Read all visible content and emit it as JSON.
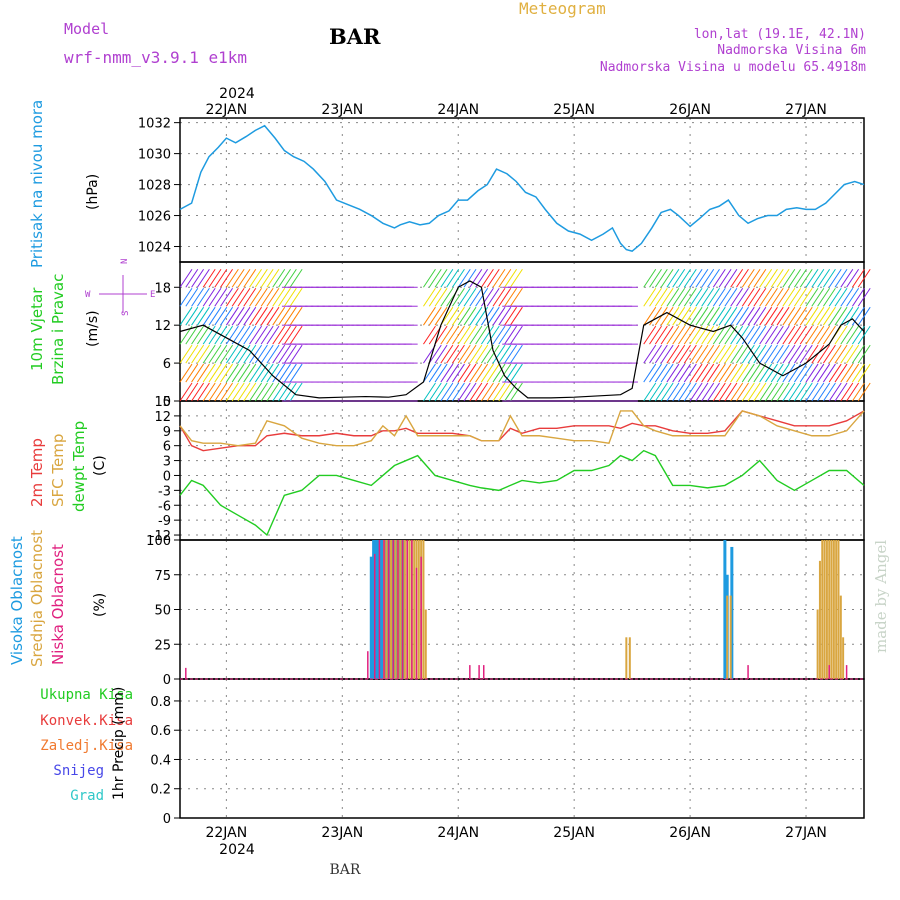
{
  "header": {
    "model_label": "Model",
    "model_name": "wrf-nmm_v3.9.1 e1km",
    "station": "BAR",
    "product": "Meteogram",
    "location": "lon,lat (19.1E, 42.1N)",
    "altitude": "Nadmorska Visina 6m",
    "model_altitude": "Nadmorska Visina u modelu 65.4918m",
    "watermark": "made by Angel",
    "footer_station": "BAR"
  },
  "colors": {
    "purple": "#b040d0",
    "gold": "#e0b040",
    "pressure": "#1e9be0",
    "temp": "#e83c3c",
    "sfc_temp": "#d9a640",
    "dewpoint": "#22cc22",
    "high_cloud": "#1e9be0",
    "mid_cloud": "#d9a640",
    "low_cloud": "#e0207f",
    "wind_label": "#22cc22",
    "precip_total": "#22cc22",
    "precip_conv": "#e83c3c",
    "precip_frozen": "#f07a30",
    "precip_snow": "#4848e8",
    "precip_hail": "#30c8c8"
  },
  "chart_data": [
    {
      "type": "line",
      "panel": "pressure",
      "ylabel": "Pritisak na nivou mora",
      "unit": "(hPa)",
      "ylim": [
        1023,
        1032.3
      ],
      "yticks": [
        1024,
        1026,
        1028,
        1030,
        1032
      ],
      "x_range_days": [
        21.6,
        27.5
      ],
      "x": [
        21.6,
        21.7,
        21.78,
        21.85,
        21.93,
        22.0,
        22.08,
        22.17,
        22.25,
        22.33,
        22.42,
        22.5,
        22.58,
        22.67,
        22.75,
        22.85,
        22.95,
        23.05,
        23.15,
        23.25,
        23.35,
        23.45,
        23.5,
        23.58,
        23.67,
        23.75,
        23.83,
        23.92,
        24.0,
        24.08,
        24.17,
        24.25,
        24.33,
        24.42,
        24.5,
        24.58,
        24.67,
        24.75,
        24.85,
        24.95,
        25.05,
        25.15,
        25.25,
        25.33,
        25.4,
        25.45,
        25.5,
        25.58,
        25.67,
        25.75,
        25.83,
        25.9,
        26.0,
        26.08,
        26.17,
        26.25,
        26.33,
        26.42,
        26.5,
        26.58,
        26.67,
        26.75,
        26.83,
        26.92,
        27.0,
        27.08,
        27.17,
        27.25,
        27.33,
        27.42,
        27.5
      ],
      "series": [
        {
          "values": [
            1026.4,
            1026.8,
            1028.8,
            1029.8,
            1030.4,
            1031.0,
            1030.7,
            1031.1,
            1031.5,
            1031.8,
            1031.0,
            1030.2,
            1029.8,
            1029.5,
            1029.0,
            1028.2,
            1027.0,
            1026.7,
            1026.4,
            1026.0,
            1025.5,
            1025.2,
            1025.4,
            1025.6,
            1025.4,
            1025.5,
            1026.0,
            1026.3,
            1027.0,
            1027.0,
            1027.6,
            1028.0,
            1029.0,
            1028.7,
            1028.2,
            1027.5,
            1027.2,
            1026.4,
            1025.5,
            1025.0,
            1024.8,
            1024.4,
            1024.8,
            1025.2,
            1024.2,
            1023.8,
            1023.7,
            1024.2,
            1025.2,
            1026.2,
            1026.4,
            1026.0,
            1025.3,
            1025.8,
            1026.4,
            1026.6,
            1027.0,
            1026.0,
            1025.5,
            1025.8,
            1026.0,
            1026.0,
            1026.4,
            1026.5,
            1026.4,
            1026.4,
            1026.8,
            1027.4,
            1028.0,
            1028.2,
            1028.0
          ]
        }
      ]
    },
    {
      "type": "line",
      "panel": "wind",
      "ylabel": "10m Vjetar Brzina i Pravac",
      "unit": "(m/s)",
      "ylim": [
        0,
        22
      ],
      "yticks": [
        0,
        6,
        12,
        18
      ],
      "compass_labels": [
        "N",
        "E",
        "S",
        "W"
      ],
      "x": [
        21.6,
        21.8,
        22.0,
        22.2,
        22.4,
        22.6,
        22.8,
        23.0,
        23.2,
        23.4,
        23.55,
        23.7,
        23.85,
        24.0,
        24.1,
        24.2,
        24.3,
        24.4,
        24.5,
        24.6,
        24.8,
        25.0,
        25.2,
        25.4,
        25.5,
        25.6,
        25.8,
        26.0,
        26.2,
        26.35,
        26.45,
        26.6,
        26.8,
        27.0,
        27.2,
        27.3,
        27.4,
        27.5
      ],
      "series": [
        {
          "name": "speed",
          "values": [
            11,
            12,
            10,
            8,
            4,
            1,
            0.5,
            0.6,
            0.7,
            0.6,
            1,
            3,
            12,
            18,
            19,
            18,
            8,
            4,
            2,
            0.5,
            0.5,
            0.6,
            0.8,
            1,
            2,
            12,
            14,
            12,
            11,
            12,
            10,
            6,
            4,
            6,
            9,
            12,
            13,
            11
          ]
        }
      ]
    },
    {
      "type": "line",
      "panel": "temperature",
      "ylabel": "2m Temp / SFC Temp / dewpt Temp",
      "unit": "(C)",
      "ylim": [
        -13,
        15
      ],
      "yticks": [
        -12,
        -9,
        -6,
        -3,
        0,
        3,
        6,
        9,
        12,
        15
      ],
      "x": [
        21.6,
        21.7,
        21.8,
        21.95,
        22.1,
        22.25,
        22.35,
        22.5,
        22.65,
        22.8,
        22.95,
        23.1,
        23.25,
        23.35,
        23.45,
        23.55,
        23.65,
        23.8,
        23.95,
        24.1,
        24.2,
        24.35,
        24.45,
        24.55,
        24.7,
        24.85,
        25.0,
        25.15,
        25.3,
        25.4,
        25.5,
        25.6,
        25.7,
        25.85,
        26.0,
        26.15,
        26.3,
        26.45,
        26.6,
        26.75,
        26.9,
        27.05,
        27.2,
        27.35,
        27.5
      ],
      "series": [
        {
          "name": "2m Temp",
          "values": [
            10,
            6,
            5,
            5.5,
            6,
            6,
            8,
            8.5,
            8,
            8,
            8.5,
            8,
            8,
            9,
            9,
            9.5,
            8.5,
            8.5,
            8.5,
            8,
            7,
            7,
            9.5,
            8.5,
            9.5,
            9.5,
            10,
            10,
            10,
            9.5,
            10.5,
            10,
            10,
            9,
            8.5,
            8.5,
            9,
            13,
            12,
            11,
            10,
            10,
            10,
            11,
            13
          ]
        },
        {
          "name": "SFC Temp",
          "values": [
            10,
            7,
            6.5,
            6.5,
            6,
            6.5,
            11,
            10,
            7.5,
            6.5,
            6,
            6,
            7,
            10,
            8,
            12,
            8,
            8,
            8,
            8,
            7,
            7,
            12,
            8,
            8,
            7.5,
            7,
            7,
            6.5,
            13,
            13,
            10,
            9,
            8,
            8,
            8,
            8,
            13,
            12,
            10,
            9,
            8,
            8,
            9,
            13
          ]
        },
        {
          "name": "dewpt Temp",
          "values": [
            -4,
            -1,
            -2,
            -6,
            -8,
            -10,
            -12,
            -4,
            -3,
            0,
            0,
            -1,
            -2,
            0,
            2,
            3,
            4,
            0,
            -1,
            -2,
            -2.5,
            -3,
            -2,
            -1,
            -1.5,
            -1,
            1,
            1,
            2,
            4,
            3,
            5,
            4,
            -2,
            -2,
            -2.5,
            -2,
            0,
            3,
            -1,
            -3,
            -1,
            1,
            1,
            -2
          ]
        }
      ]
    },
    {
      "type": "bar",
      "panel": "cloud_cover",
      "ylabel": "Visoka Oblacnost / Srednja Oblacnost / Niska Oblacnost",
      "unit": "(%)",
      "ylim": [
        0,
        100
      ],
      "yticks": [
        0,
        25,
        50,
        75,
        100
      ],
      "series": [
        {
          "name": "Visoka Oblacnost",
          "x": [
            23.25,
            23.27,
            23.29,
            23.31,
            23.33,
            23.35,
            23.37,
            23.39,
            23.41,
            23.43,
            23.45,
            23.47,
            23.49,
            23.51,
            23.53,
            26.3,
            26.32,
            26.36
          ],
          "values": [
            88,
            100,
            100,
            100,
            100,
            100,
            100,
            100,
            100,
            100,
            100,
            100,
            100,
            100,
            100,
            100,
            75,
            95
          ]
        },
        {
          "name": "Srednja Oblacnost",
          "x": [
            23.36,
            23.38,
            23.4,
            23.42,
            23.44,
            23.46,
            23.48,
            23.5,
            23.52,
            23.54,
            23.56,
            23.58,
            23.6,
            23.62,
            23.64,
            23.66,
            23.68,
            23.7,
            23.72,
            25.45,
            25.48,
            26.32,
            26.35,
            27.1,
            27.12,
            27.14,
            27.16,
            27.18,
            27.2,
            27.22,
            27.24,
            27.26,
            27.28,
            27.3,
            27.32
          ],
          "values": [
            100,
            100,
            100,
            100,
            100,
            100,
            100,
            100,
            100,
            100,
            100,
            100,
            100,
            100,
            100,
            100,
            100,
            100,
            50,
            30,
            30,
            60,
            60,
            50,
            85,
            100,
            100,
            100,
            100,
            100,
            100,
            100,
            100,
            60,
            30
          ]
        },
        {
          "name": "Niska Oblacnost",
          "x": [
            21.65,
            23.22,
            23.28,
            23.32,
            23.36,
            23.4,
            23.44,
            23.48,
            23.52,
            23.56,
            23.6,
            23.64,
            23.68,
            24.1,
            24.18,
            24.22,
            26.5,
            27.2,
            27.35
          ],
          "values": [
            8,
            20,
            90,
            100,
            100,
            100,
            100,
            100,
            100,
            100,
            100,
            80,
            88,
            10,
            10,
            10,
            10,
            10,
            10
          ]
        }
      ]
    },
    {
      "type": "line",
      "panel": "precipitation",
      "ylabel": "1hr Precip (mm)",
      "ylim": [
        0,
        0.95
      ],
      "yticks": [
        0,
        0.2,
        0.4,
        0.6,
        0.8
      ],
      "legend": [
        "Ukupna Kisa",
        "Konvek.Kisa",
        "Zaledj.Kisa",
        "Snijeg",
        "Grad"
      ],
      "series": []
    }
  ],
  "x_axis": {
    "labels": [
      "22JAN",
      "23JAN",
      "24JAN",
      "25JAN",
      "26JAN",
      "27JAN"
    ],
    "label_days": [
      22,
      23,
      24,
      25,
      26,
      27
    ],
    "year": "2024"
  }
}
